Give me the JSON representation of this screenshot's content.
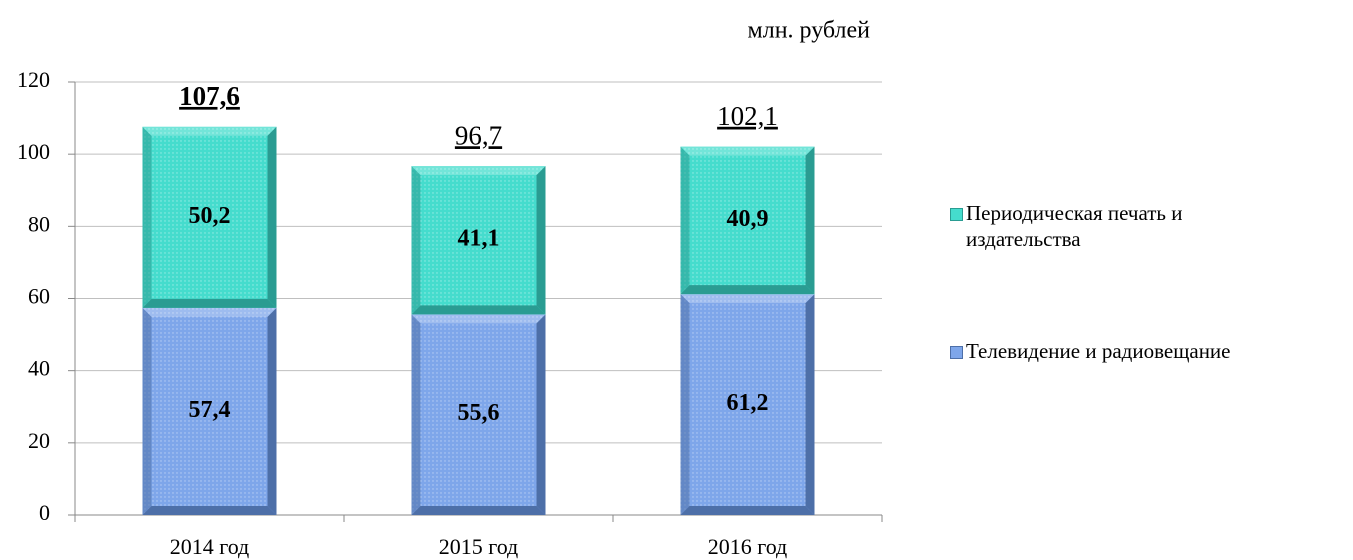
{
  "chart_data": {
    "type": "stacked_bar",
    "unit_label": "млн. рублей",
    "categories": [
      "2014 год",
      "2015 год",
      "2016 год"
    ],
    "series": [
      {
        "name": "Телевидение и радиовещание",
        "color": "#7ea6ea",
        "edge_color": "#4d6fa8",
        "values": [
          57.4,
          55.6,
          61.2
        ],
        "value_labels": [
          "57,4",
          "55,6",
          "61,2"
        ]
      },
      {
        "name": "Периодическая печать и издательства",
        "color": "#45dccd",
        "edge_color": "#2a9c92",
        "values": [
          50.2,
          41.1,
          40.9
        ],
        "value_labels": [
          "50,2",
          "41,1",
          "40,9"
        ]
      }
    ],
    "totals": [
      107.6,
      96.7,
      102.1
    ],
    "total_labels": [
      "107,6",
      "96,7",
      "102,1"
    ],
    "ylim": [
      0,
      120
    ],
    "yticks": [
      0,
      20,
      40,
      60,
      80,
      100,
      120
    ],
    "grid": true
  }
}
